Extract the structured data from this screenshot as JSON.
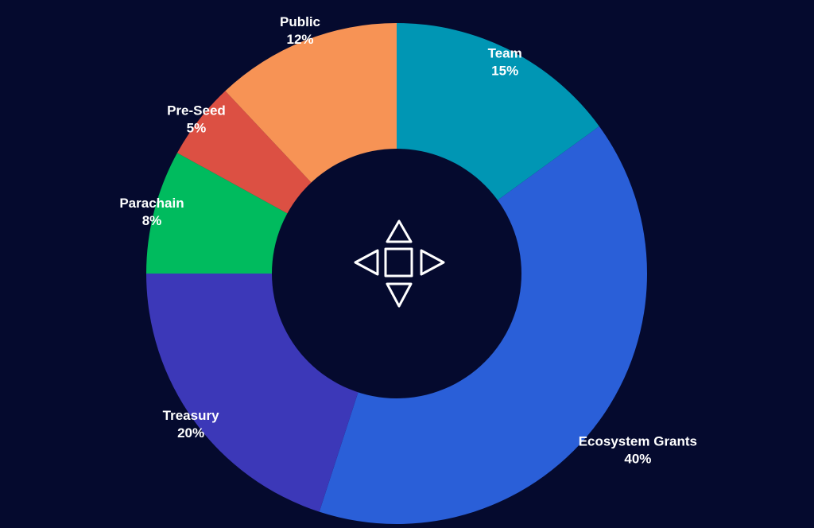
{
  "chart_data": {
    "type": "pie",
    "donut": true,
    "title": "",
    "slices": [
      {
        "label": "Team",
        "value": 15,
        "value_label": "15%",
        "color": "#0096b4"
      },
      {
        "label": "Ecosystem Grants",
        "value": 40,
        "value_label": "40%",
        "color": "#2a5fd8"
      },
      {
        "label": "Treasury",
        "value": 20,
        "value_label": "20%",
        "color": "#3c38b8"
      },
      {
        "label": "Parachain",
        "value": 8,
        "value_label": "8%",
        "color": "#00bb5e"
      },
      {
        "label": "Pre-Seed",
        "value": 5,
        "value_label": "5%",
        "color": "#dc5043"
      },
      {
        "label": "Public",
        "value": 12,
        "value_label": "12%",
        "color": "#f79355"
      }
    ],
    "start_angle": "top",
    "direction": "clockwise"
  },
  "center_icon": "four-direction-arrows-icon",
  "colors": {
    "background": "#050a2e",
    "center_hole": "#050a2e",
    "icon_stroke": "#ffffff",
    "label_text": "#ffffff"
  }
}
